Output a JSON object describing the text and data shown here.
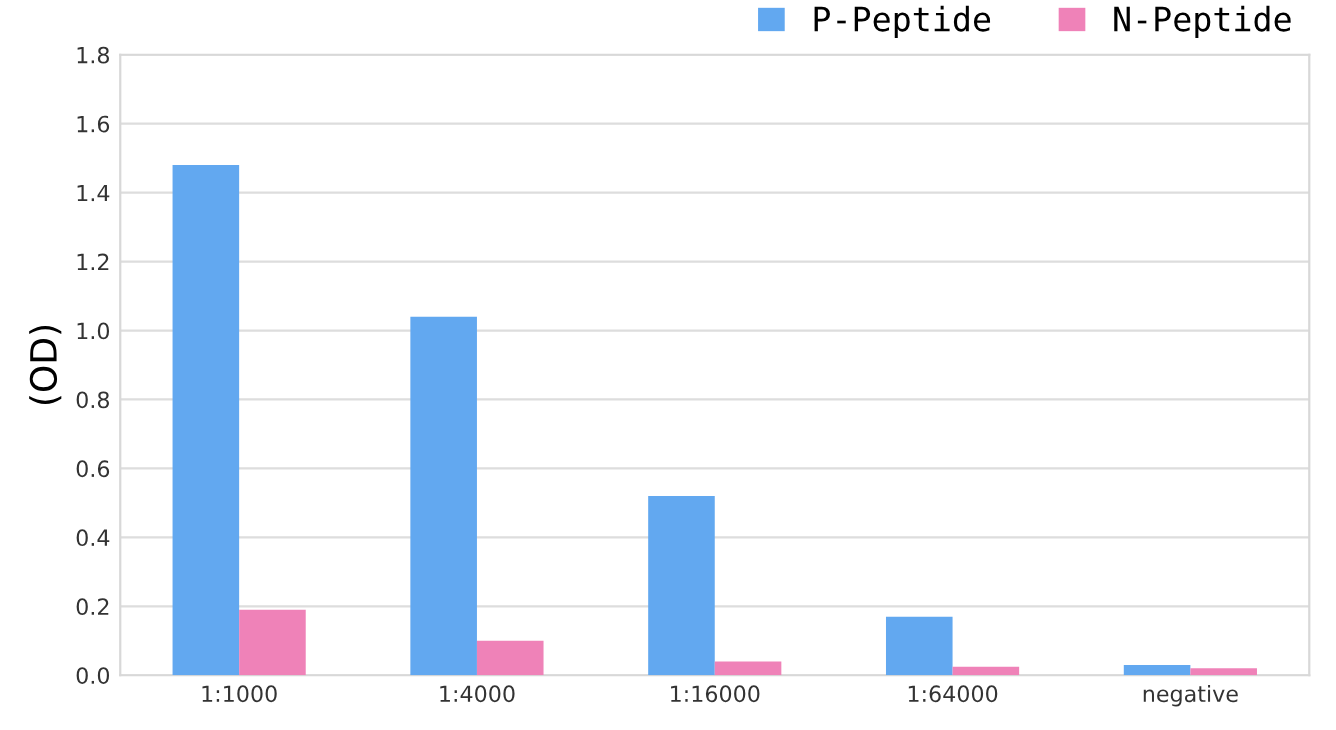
{
  "chart_data": {
    "type": "bar",
    "ylabel": "(OD)",
    "categories": [
      "1:1000",
      "1:4000",
      "1:16000",
      "1:64000",
      "negative"
    ],
    "series": [
      {
        "name": "P-Peptide",
        "color": "#62a8f0",
        "values": [
          1.48,
          1.04,
          0.52,
          0.17,
          0.03
        ]
      },
      {
        "name": "N-Peptide",
        "color": "#ef82b8",
        "values": [
          0.19,
          0.1,
          0.04,
          0.025,
          0.02
        ]
      }
    ],
    "ylim": [
      0,
      1.8
    ],
    "yticks": [
      {
        "value": 0,
        "label": "0.0"
      },
      0.2,
      0.4,
      0.6,
      0.8,
      {
        "value": 1,
        "label": "1.0"
      },
      1.2,
      1.4,
      1.6,
      1.8
    ],
    "grid": "y",
    "legend": "top right"
  }
}
